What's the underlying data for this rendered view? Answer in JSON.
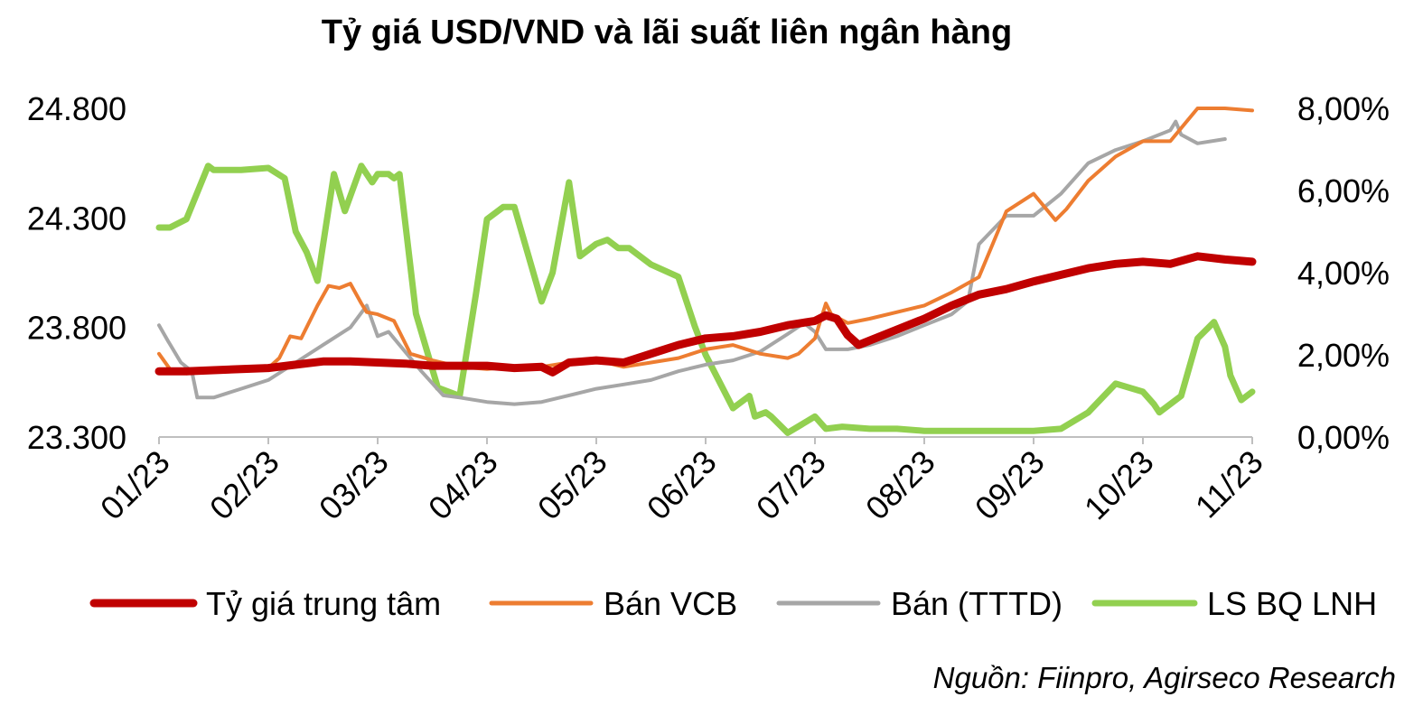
{
  "chart_data": {
    "type": "line",
    "title": "Tỷ giá USD/VND và lãi suất liên ngân hàng",
    "source": "Nguồn: Fiinpro, Agirseco Research",
    "x_labels": [
      "01/23",
      "02/23",
      "03/23",
      "04/23",
      "05/23",
      "06/23",
      "07/23",
      "08/23",
      "09/23",
      "10/23",
      "11/23"
    ],
    "y_left": {
      "ticks": [
        "24.800",
        "24.300",
        "23.800",
        "23.300"
      ],
      "ylim": [
        23300,
        24800
      ]
    },
    "y_right": {
      "ticks": [
        "8,00%",
        "6,00%",
        "4,00%",
        "2,00%",
        "0,00%"
      ],
      "ylim": [
        0,
        8
      ]
    },
    "grid": false,
    "legend_position": "bottom",
    "series": [
      {
        "name": "Tỷ giá trung tâm",
        "axis": "left",
        "color": "#c00000",
        "width": 9,
        "x": [
          0,
          0.25,
          0.5,
          0.75,
          1,
          1.25,
          1.5,
          1.75,
          2,
          2.25,
          2.5,
          2.75,
          3,
          3.25,
          3.5,
          3.6,
          3.75,
          4,
          4.25,
          4.5,
          4.75,
          5,
          5.25,
          5.5,
          5.75,
          6,
          6.1,
          6.2,
          6.3,
          6.4,
          6.5,
          6.75,
          7,
          7.25,
          7.5,
          7.75,
          8,
          8.25,
          8.5,
          8.75,
          9,
          9.25,
          9.5,
          9.75,
          10
        ],
        "y": [
          23600,
          23600,
          23605,
          23610,
          23615,
          23630,
          23645,
          23645,
          23640,
          23635,
          23625,
          23625,
          23625,
          23615,
          23620,
          23595,
          23640,
          23650,
          23640,
          23680,
          23720,
          23750,
          23760,
          23780,
          23810,
          23830,
          23855,
          23840,
          23765,
          23720,
          23740,
          23790,
          23840,
          23900,
          23950,
          23975,
          24010,
          24040,
          24070,
          24090,
          24100,
          24090,
          24125,
          24110,
          24100
        ]
      },
      {
        "name": "Bán VCB",
        "axis": "left",
        "color": "#ed7d31",
        "width": 4,
        "x": [
          0,
          0.1,
          0.25,
          0.5,
          0.75,
          1,
          1.1,
          1.2,
          1.3,
          1.45,
          1.55,
          1.65,
          1.75,
          1.85,
          1.9,
          2,
          2.15,
          2.3,
          2.5,
          2.75,
          3,
          3.25,
          3.5,
          3.75,
          4,
          4.25,
          4.5,
          4.75,
          5,
          5.25,
          5.5,
          5.75,
          5.85,
          6,
          6.05,
          6.1,
          6.15,
          6.3,
          6.5,
          6.75,
          7,
          7.25,
          7.5,
          7.75,
          8,
          8.2,
          8.3,
          8.5,
          8.75,
          9,
          9.25,
          9.5,
          9.75,
          10
        ],
        "y": [
          23680,
          23610,
          23590,
          23600,
          23610,
          23615,
          23660,
          23760,
          23750,
          23900,
          23990,
          23980,
          24000,
          23910,
          23870,
          23860,
          23830,
          23680,
          23650,
          23620,
          23610,
          23620,
          23620,
          23640,
          23650,
          23620,
          23640,
          23660,
          23700,
          23720,
          23680,
          23660,
          23680,
          23750,
          23830,
          23910,
          23860,
          23820,
          23840,
          23870,
          23900,
          23960,
          24030,
          24330,
          24410,
          24290,
          24340,
          24470,
          24580,
          24650,
          24650,
          24800,
          24800,
          24790
        ]
      },
      {
        "name": "Bán (TTTD)",
        "axis": "left",
        "color": "#a6a6a6",
        "width": 4,
        "x": [
          0,
          0.08,
          0.2,
          0.3,
          0.35,
          0.5,
          0.75,
          1,
          1.25,
          1.5,
          1.75,
          1.9,
          2,
          2.1,
          2.3,
          2.4,
          2.6,
          2.75,
          3,
          3.25,
          3.5,
          3.75,
          4,
          4.25,
          4.5,
          4.75,
          5,
          5.25,
          5.5,
          5.75,
          5.9,
          6,
          6.1,
          6.3,
          6.5,
          6.75,
          7,
          7.25,
          7.4,
          7.5,
          7.75,
          8,
          8.25,
          8.5,
          8.75,
          9,
          9.25,
          9.3,
          9.35,
          9.5,
          9.75
        ],
        "y": [
          23810,
          23740,
          23640,
          23600,
          23480,
          23480,
          23520,
          23560,
          23640,
          23720,
          23800,
          23900,
          23760,
          23780,
          23660,
          23600,
          23490,
          23480,
          23460,
          23450,
          23460,
          23490,
          23520,
          23540,
          23560,
          23600,
          23630,
          23650,
          23690,
          23770,
          23820,
          23780,
          23700,
          23700,
          23720,
          23760,
          23810,
          23860,
          23920,
          24180,
          24310,
          24310,
          24410,
          24550,
          24610,
          24650,
          24700,
          24740,
          24680,
          24640,
          24660
        ]
      },
      {
        "name": "LS BQ LNH",
        "axis": "right",
        "color": "#92d050",
        "width": 7,
        "x": [
          0,
          0.1,
          0.25,
          0.45,
          0.5,
          0.75,
          1,
          1.15,
          1.25,
          1.35,
          1.45,
          1.6,
          1.7,
          1.85,
          1.9,
          1.95,
          2,
          2.1,
          2.15,
          2.2,
          2.35,
          2.55,
          2.75,
          2.9,
          3,
          3.15,
          3.25,
          3.5,
          3.6,
          3.75,
          3.85,
          4,
          4.1,
          4.2,
          4.3,
          4.5,
          4.75,
          4.9,
          5,
          5.25,
          5.4,
          5.45,
          5.55,
          5.6,
          5.75,
          6,
          6.1,
          6.25,
          6.5,
          6.6,
          6.75,
          7,
          7.25,
          7.5,
          7.75,
          8,
          8.25,
          8.5,
          8.75,
          9,
          9.1,
          9.15,
          9.25,
          9.35,
          9.5,
          9.65,
          9.75,
          9.8,
          9.85,
          9.9,
          9.95,
          10
        ],
        "y": [
          5.1,
          5.1,
          5.3,
          6.6,
          6.5,
          6.5,
          6.55,
          6.3,
          5.0,
          4.5,
          3.8,
          6.4,
          5.5,
          6.6,
          6.4,
          6.2,
          6.4,
          6.4,
          6.3,
          6.4,
          3.0,
          1.2,
          1.0,
          3.5,
          5.3,
          5.6,
          5.6,
          3.3,
          4.0,
          6.2,
          4.4,
          4.7,
          4.8,
          4.6,
          4.6,
          4.2,
          3.9,
          2.7,
          2.0,
          0.7,
          1.0,
          0.5,
          0.6,
          0.5,
          0.1,
          0.5,
          0.2,
          0.25,
          0.2,
          0.2,
          0.2,
          0.15,
          0.15,
          0.15,
          0.15,
          0.15,
          0.2,
          0.6,
          1.3,
          1.1,
          0.8,
          0.6,
          0.8,
          1.0,
          2.4,
          2.8,
          2.2,
          1.5,
          1.2,
          0.9,
          1.0,
          1.1
        ]
      }
    ]
  }
}
